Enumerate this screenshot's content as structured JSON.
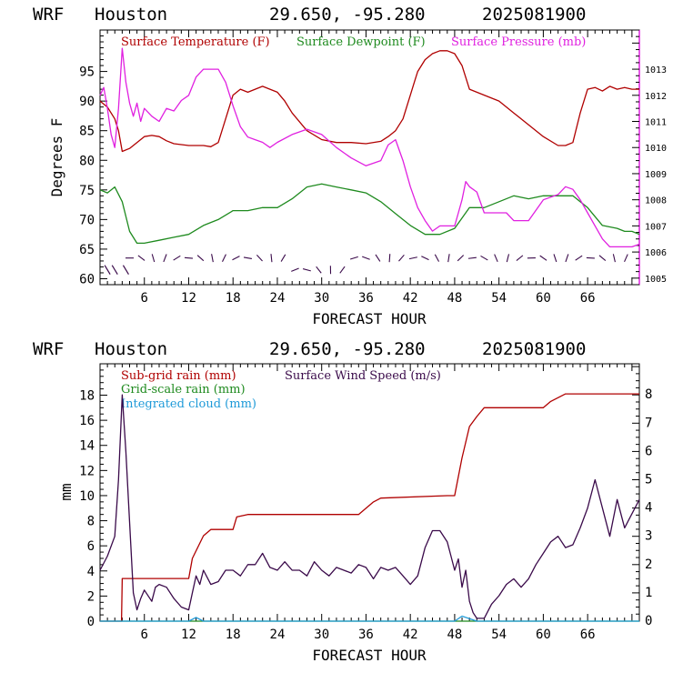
{
  "chart_data": [
    {
      "type": "line",
      "header": {
        "model": "WRF",
        "city": "Houston",
        "coords": "29.650, -95.280",
        "date": "2025081900"
      },
      "xlabel": "FORECAST HOUR",
      "ylabel": "Degrees F",
      "xlim": [
        0,
        73
      ],
      "ylim": [
        59,
        102
      ],
      "y2lim": [
        1004.75,
        1014.5
      ],
      "x_ticks": [
        6,
        12,
        18,
        24,
        30,
        36,
        42,
        48,
        54,
        60,
        66
      ],
      "y_ticks": [
        60,
        65,
        70,
        75,
        80,
        85,
        90,
        95
      ],
      "y2_ticks": [
        1005,
        1006,
        1007,
        1008,
        1009,
        1010,
        1011,
        1012,
        1013
      ],
      "series": [
        {
          "name": "Surface Temperature (F)",
          "color": "#b00000",
          "axis": "left",
          "x": [
            0,
            1,
            2,
            2.5,
            3,
            4,
            5,
            6,
            7,
            8,
            9,
            10,
            12,
            14,
            15,
            16,
            17,
            18,
            19,
            20,
            21,
            22,
            23,
            24,
            25,
            26,
            28,
            30,
            32,
            34,
            36,
            38,
            39,
            40,
            41,
            42,
            42.5,
            43,
            44,
            45,
            46,
            47,
            48,
            49,
            50,
            52,
            54,
            56,
            58,
            60,
            62,
            63,
            64,
            65,
            66,
            67,
            68,
            69,
            70,
            71,
            72,
            73
          ],
          "y": [
            90,
            89,
            87,
            85,
            81.5,
            82,
            83,
            84,
            84.2,
            84,
            83.3,
            82.8,
            82.5,
            82.5,
            82.3,
            83,
            87,
            91,
            92,
            91.5,
            92,
            92.5,
            92,
            91.5,
            90,
            88,
            85,
            83.5,
            83,
            83,
            82.8,
            83.2,
            84,
            85,
            87,
            91,
            93,
            95,
            97,
            98,
            98.5,
            98.5,
            98,
            96,
            92,
            91,
            90,
            88,
            86,
            84,
            82.5,
            82.5,
            83,
            88,
            92,
            92.3,
            91.7,
            92.5,
            92,
            92.3,
            92,
            92
          ]
        },
        {
          "name": "Surface Dewpoint (F)",
          "color": "#1e8a1e",
          "axis": "left",
          "x": [
            0,
            1,
            2,
            3,
            4,
            5,
            6,
            8,
            10,
            12,
            14,
            16,
            18,
            20,
            22,
            24,
            26,
            28,
            30,
            32,
            34,
            36,
            38,
            40,
            42,
            44,
            46,
            48,
            50,
            52,
            54,
            56,
            58,
            60,
            62,
            63,
            64,
            66,
            68,
            70,
            71,
            72,
            73
          ],
          "y": [
            75,
            74.5,
            75.5,
            73,
            68,
            66,
            66,
            66.5,
            67,
            67.5,
            69,
            70,
            71.5,
            71.5,
            72,
            72,
            73.5,
            75.5,
            76,
            75.5,
            75,
            74.5,
            73,
            71,
            69,
            67.5,
            67.5,
            68.5,
            72,
            72,
            73,
            74,
            73.5,
            74,
            74,
            74,
            74,
            72,
            69,
            68.5,
            68,
            68,
            67.5
          ]
        },
        {
          "name": "Surface Pressure (mb)",
          "color": "#e020e0",
          "axis": "right",
          "x": [
            0,
            0.5,
            1,
            1.5,
            2,
            2.5,
            3,
            3.5,
            4,
            4.5,
            5,
            5.5,
            6,
            7,
            8,
            9,
            10,
            11,
            12,
            13,
            14,
            15,
            16,
            17,
            18,
            19,
            20,
            21,
            22,
            23,
            24,
            26,
            28,
            30,
            32,
            34,
            36,
            38,
            39,
            40,
            41,
            42,
            43,
            44,
            45,
            46,
            47,
            48,
            48.5,
            49,
            49.5,
            50,
            51,
            52,
            53,
            54,
            55,
            56,
            58,
            60,
            62,
            63,
            64,
            65,
            66,
            67,
            68,
            69,
            70,
            71,
            72,
            73
          ],
          "y": [
            1012,
            1012.3,
            1011.5,
            1010.5,
            1010,
            1011.5,
            1013.8,
            1012.5,
            1011.7,
            1011.2,
            1011.7,
            1011,
            1011.5,
            1011.2,
            1011,
            1011.5,
            1011.4,
            1011.8,
            1012,
            1012.7,
            1013,
            1013,
            1013,
            1012.5,
            1011.6,
            1010.8,
            1010.4,
            1010.3,
            1010.2,
            1010,
            1010.2,
            1010.5,
            1010.7,
            1010.5,
            1010,
            1009.6,
            1009.3,
            1009.5,
            1010.1,
            1010.3,
            1009.5,
            1008.5,
            1007.7,
            1007.2,
            1006.8,
            1007,
            1007,
            1007,
            1007.5,
            1008,
            1008.7,
            1008.5,
            1008.3,
            1007.5,
            1007.5,
            1007.5,
            1007.5,
            1007.2,
            1007.2,
            1008,
            1008.2,
            1008.5,
            1008.4,
            1008,
            1007.5,
            1007,
            1006.5,
            1006.2,
            1006.2,
            1006.2,
            1006.2,
            1006.3
          ]
        }
      ],
      "wind_barbs": {
        "color": "#3a0a4a",
        "row1_x": [
          1,
          2,
          3.5
        ],
        "row2_x_start": 4,
        "row2_x_end": 72,
        "row2_step": 1.6
      },
      "legend": [
        "Surface Temperature (F)",
        "Surface Dewpoint (F)",
        "Surface Pressure (mb)"
      ]
    },
    {
      "type": "line",
      "header": {
        "model": "WRF",
        "city": "Houston",
        "coords": "29.650, -95.280",
        "date": "2025081900"
      },
      "xlabel": "FORECAST HOUR",
      "ylabel": "mm",
      "xlim": [
        0,
        73
      ],
      "ylim": [
        0,
        20.5
      ],
      "y2lim": [
        0,
        9.1
      ],
      "x_ticks": [
        6,
        12,
        18,
        24,
        30,
        36,
        42,
        48,
        54,
        60,
        66
      ],
      "y_ticks": [
        0,
        2,
        4,
        6,
        8,
        10,
        12,
        14,
        16,
        18
      ],
      "y2_ticks": [
        0,
        1,
        2,
        3,
        4,
        5,
        6,
        7,
        8
      ],
      "series": [
        {
          "name": "Sub-grid rain (mm)",
          "color": "#b00000",
          "axis": "left",
          "x": [
            0,
            2.9,
            3,
            12,
            12.5,
            14,
            15,
            18,
            18.5,
            20,
            35,
            37,
            38,
            47,
            48,
            49,
            50,
            51,
            52,
            60,
            61,
            63,
            73
          ],
          "y": [
            0,
            0,
            3.4,
            3.4,
            5.0,
            6.8,
            7.3,
            7.3,
            8.3,
            8.5,
            8.5,
            9.5,
            9.8,
            10.0,
            10.0,
            13.0,
            15.5,
            16.3,
            17.0,
            17.0,
            17.5,
            18.1,
            18.1
          ]
        },
        {
          "name": "Grid-scale rain (mm)",
          "color": "#1e8a1e",
          "axis": "left",
          "x": [
            0,
            73
          ],
          "y": [
            0,
            0
          ]
        },
        {
          "name": "Integrated cloud (mm)",
          "color": "#1e9ad8",
          "axis": "left",
          "x": [
            0,
            12,
            13,
            14,
            18,
            20,
            48,
            49,
            50,
            51,
            72,
            73
          ],
          "y": [
            0,
            0,
            0.3,
            0,
            0,
            0,
            0,
            0.4,
            0.2,
            0,
            0,
            0
          ]
        },
        {
          "name": "Surface Wind Speed (m/s)",
          "color": "#3a0a4a",
          "axis": "right",
          "x": [
            0,
            1,
            2,
            2.5,
            3,
            3.5,
            4,
            4.5,
            5,
            5.5,
            6,
            7,
            7.5,
            8,
            9,
            10,
            11,
            12,
            12.5,
            13,
            13.5,
            14,
            15,
            16,
            17,
            18,
            19,
            20,
            21,
            22,
            23,
            24,
            25,
            26,
            27,
            28,
            29,
            30,
            31,
            32,
            33,
            34,
            35,
            36,
            37,
            38,
            39,
            40,
            41,
            42,
            43,
            44,
            45,
            46,
            47,
            47.5,
            48,
            48.5,
            49,
            49.5,
            50,
            50.5,
            51,
            52,
            53,
            54,
            55,
            56,
            57,
            58,
            59,
            60,
            61,
            62,
            63,
            64,
            65,
            66,
            67,
            68,
            69,
            70,
            71,
            72,
            73
          ],
          "y": [
            1.8,
            2.3,
            3.0,
            5.0,
            8.0,
            6.0,
            3.5,
            1.0,
            0.4,
            0.8,
            1.1,
            0.7,
            1.2,
            1.3,
            1.2,
            0.8,
            0.5,
            0.4,
            1.0,
            1.6,
            1.3,
            1.8,
            1.3,
            1.4,
            1.8,
            1.8,
            1.6,
            2.0,
            2.0,
            2.4,
            1.9,
            1.8,
            2.1,
            1.8,
            1.8,
            1.6,
            2.1,
            1.8,
            1.6,
            1.9,
            1.8,
            1.7,
            2.0,
            1.9,
            1.5,
            1.9,
            1.8,
            1.9,
            1.6,
            1.3,
            1.6,
            2.6,
            3.2,
            3.2,
            2.8,
            2.3,
            1.8,
            2.2,
            1.2,
            1.8,
            0.7,
            0.3,
            0.1,
            0.1,
            0.6,
            0.9,
            1.3,
            1.5,
            1.2,
            1.5,
            2.0,
            2.4,
            2.8,
            3.0,
            2.6,
            2.7,
            3.3,
            4.0,
            5.0,
            4.0,
            3.0,
            4.3,
            3.3,
            3.8,
            4.3
          ]
        }
      ],
      "legend": [
        "Sub-grid rain (mm)",
        "Grid-scale rain (mm)",
        "Integrated cloud (mm)",
        "Surface Wind Speed (m/s)"
      ]
    }
  ]
}
